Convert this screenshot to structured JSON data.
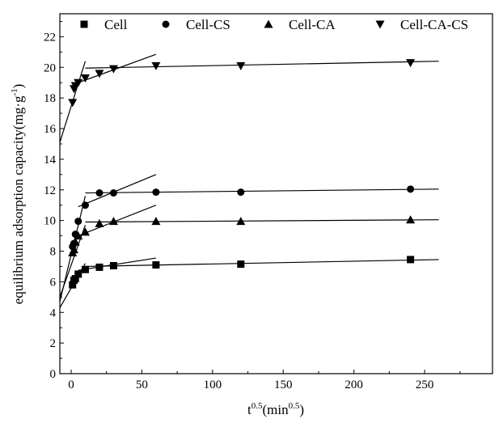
{
  "chart_data": {
    "type": "scatter",
    "xlabel": "t",
    "xlabel_sup": "0.5",
    "xlabel_unit_pre": "(min",
    "xlabel_unit_sup": "0.5",
    "xlabel_unit_post": ")",
    "ylabel": "equilibrium adsorption capacity(mg·g",
    "ylabel_sup": "-1",
    "ylabel_post": ")",
    "xlim": [
      -8,
      298
    ],
    "ylim": [
      0,
      23.5
    ],
    "x_ticks": [
      0,
      50,
      100,
      150,
      200,
      250
    ],
    "x_tick_labels": [
      "0",
      "50",
      "100",
      "150",
      "200",
      "250"
    ],
    "y_ticks": [
      0,
      2,
      4,
      6,
      8,
      10,
      12,
      14,
      16,
      18,
      20,
      22
    ],
    "y_tick_labels": [
      "0",
      "2",
      "4",
      "6",
      "8",
      "10",
      "12",
      "14",
      "16",
      "18",
      "20",
      "22"
    ],
    "grid": false,
    "legend_position": "top",
    "series": [
      {
        "name": "Cell",
        "marker": "square",
        "x": [
          1,
          2,
          3,
          5,
          10,
          20,
          30,
          60,
          120,
          240
        ],
        "y": [
          5.8,
          6.1,
          6.2,
          6.5,
          6.8,
          6.95,
          7.05,
          7.1,
          7.15,
          7.45
        ],
        "fit_lines": [
          {
            "x": [
              -8,
              10
            ],
            "y": [
              4.3,
              7.2
            ]
          },
          {
            "x": [
              5,
              60
            ],
            "y": [
              6.75,
              7.55
            ]
          },
          {
            "x": [
              10,
              260
            ],
            "y": [
              7.0,
              7.45
            ]
          }
        ]
      },
      {
        "name": "Cell-CS",
        "marker": "circle",
        "x": [
          1,
          2,
          3,
          5,
          10,
          20,
          30,
          60,
          120,
          240
        ],
        "y": [
          8.3,
          8.5,
          9.1,
          9.95,
          11.0,
          11.8,
          11.8,
          11.85,
          11.85,
          12.05
        ],
        "fit_lines": [
          {
            "x": [
              -8,
              10
            ],
            "y": [
              4.7,
              11.6
            ]
          },
          {
            "x": [
              5,
              60
            ],
            "y": [
              10.9,
              13.0
            ]
          },
          {
            "x": [
              10,
              260
            ],
            "y": [
              11.8,
              12.05
            ]
          }
        ]
      },
      {
        "name": "Cell-CA",
        "marker": "triangle-up",
        "x": [
          1,
          2,
          3,
          5,
          10,
          20,
          30,
          60,
          120,
          240
        ],
        "y": [
          7.9,
          8.1,
          8.6,
          9.0,
          9.25,
          9.8,
          9.95,
          9.95,
          9.95,
          10.05
        ],
        "fit_lines": [
          {
            "x": [
              -8,
              10
            ],
            "y": [
              5.0,
              9.7
            ]
          },
          {
            "x": [
              5,
              60
            ],
            "y": [
              9.0,
              11.0
            ]
          },
          {
            "x": [
              10,
              260
            ],
            "y": [
              9.9,
              10.05
            ]
          }
        ]
      },
      {
        "name": "Cell-CA-CS",
        "marker": "triangle-down",
        "x": [
          1,
          2,
          3,
          5,
          10,
          20,
          30,
          60,
          120,
          240
        ],
        "y": [
          17.7,
          18.6,
          18.8,
          19.0,
          19.3,
          19.6,
          19.9,
          20.1,
          20.1,
          20.3
        ],
        "fit_lines": [
          {
            "x": [
              -8,
              10
            ],
            "y": [
              15.1,
              20.4
            ]
          },
          {
            "x": [
              5,
              60
            ],
            "y": [
              19.0,
              20.85
            ]
          },
          {
            "x": [
              10,
              260
            ],
            "y": [
              19.95,
              20.4
            ]
          }
        ]
      }
    ]
  }
}
